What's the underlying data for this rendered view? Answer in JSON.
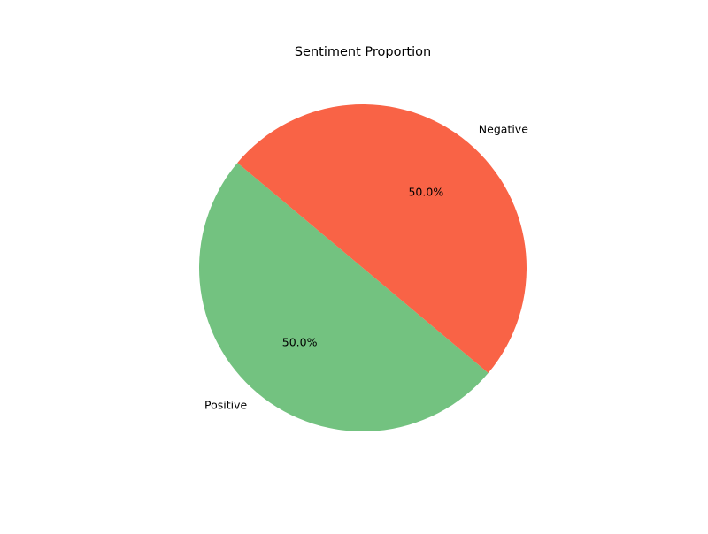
{
  "chart_data": {
    "type": "pie",
    "title": "Sentiment Proportion",
    "slices": [
      {
        "label": "Positive",
        "value": 50.0,
        "pct_label": "50.0%",
        "color": "#73c280"
      },
      {
        "label": "Negative",
        "value": 50.0,
        "pct_label": "50.0%",
        "color": "#f96346"
      }
    ],
    "start_angle_deg": 140,
    "direction": "counterclockwise",
    "legend": "none"
  }
}
